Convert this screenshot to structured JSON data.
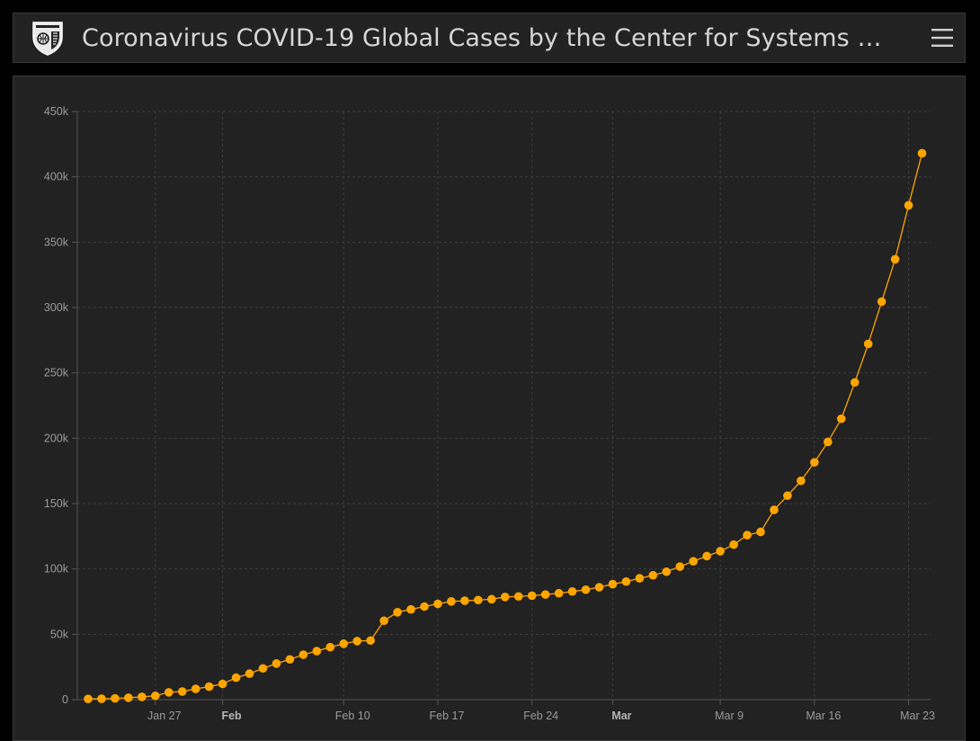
{
  "header": {
    "title": "Coronavirus COVID-19 Global Cases by the Center for Systems …",
    "logo_icon": "university-shield-icon",
    "menu_icon": "hamburger-menu-icon"
  },
  "colors": {
    "accent": "#ffa500",
    "background": "#222222",
    "grid": "#3d3d3d",
    "text": "#d6d6d6"
  },
  "chart_data": {
    "type": "line",
    "title": "",
    "xlabel": "",
    "ylabel": "",
    "ylim": [
      0,
      450000
    ],
    "yticks": [
      0,
      50000,
      100000,
      150000,
      200000,
      250000,
      300000,
      350000,
      400000,
      450000
    ],
    "ytick_labels": [
      "0",
      "50k",
      "100k",
      "150k",
      "200k",
      "250k",
      "300k",
      "350k",
      "400k",
      "450k"
    ],
    "xtick_labels": [
      {
        "label": "Jan 27",
        "day": 5,
        "bold": false
      },
      {
        "label": "Feb",
        "day": 10,
        "bold": true
      },
      {
        "label": "Feb 10",
        "day": 19,
        "bold": false
      },
      {
        "label": "Feb 17",
        "day": 26,
        "bold": false
      },
      {
        "label": "Feb 24",
        "day": 33,
        "bold": false
      },
      {
        "label": "Mar",
        "day": 39,
        "bold": true
      },
      {
        "label": "Mar 9",
        "day": 47,
        "bold": false
      },
      {
        "label": "Mar 16",
        "day": 54,
        "bold": false
      },
      {
        "label": "Mar 23",
        "day": 61,
        "bold": false
      }
    ],
    "x_start": "Jan 22",
    "series": [
      {
        "name": "Global Cases",
        "color": "#ffa500",
        "values": [
          555,
          653,
          941,
          1438,
          2118,
          2927,
          5578,
          6167,
          8235,
          9927,
          12038,
          16787,
          19881,
          23892,
          27635,
          30794,
          34391,
          37120,
          40150,
          42762,
          44802,
          45221,
          60368,
          66885,
          69030,
          71224,
          73258,
          75136,
          75639,
          76197,
          76819,
          78572,
          78958,
          79561,
          80406,
          81388,
          82746,
          84112,
          86011,
          88369,
          90306,
          92840,
          95120,
          97886,
          101800,
          105836,
          109835,
          113582,
          118582,
          125865,
          128343,
          145193,
          156097,
          167449,
          181546,
          197168,
          214915,
          242713,
          272167,
          304528,
          336953,
          378235,
          418045
        ]
      }
    ]
  }
}
